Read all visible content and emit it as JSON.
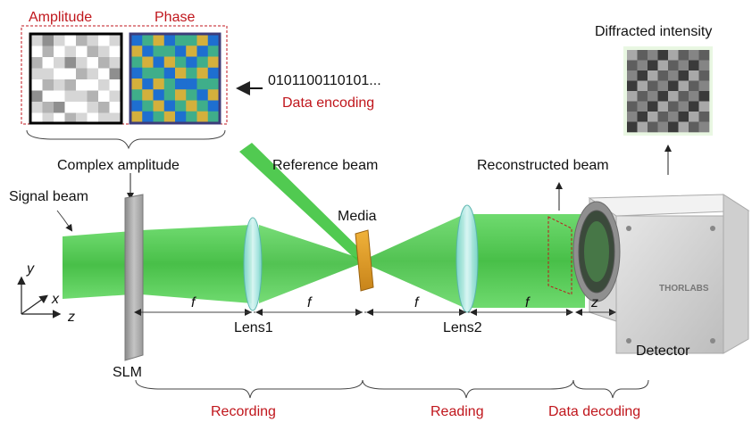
{
  "labels": {
    "amplitude": "Amplitude",
    "phase": "Phase",
    "bitstream": "0101100110101...",
    "data_encoding": "Data encoding",
    "complex_amplitude": "Complex amplitude",
    "reference_beam": "Reference beam",
    "signal_beam": "Signal beam",
    "media": "Media",
    "reconstructed_beam": "Reconstructed beam",
    "diffracted_intensity": "Diffracted intensity",
    "lens1": "Lens1",
    "lens2": "Lens2",
    "slm": "SLM",
    "detector": "Detector",
    "detector_brand": "THORLABS",
    "f": "f",
    "z": "z",
    "axis_x": "x",
    "axis_y": "y",
    "axis_z": "z",
    "recording": "Recording",
    "reading": "Reading",
    "data_decoding": "Data decoding"
  },
  "colors": {
    "accent_red": "#c0161c",
    "beam_green": "#3ec43e",
    "phase_blue": "#1e6fd0",
    "phase_teal": "#3fae8a",
    "phase_yellow": "#d4b03c"
  },
  "patterns": {
    "amplitude": [
      [
        1,
        3,
        1,
        0,
        2,
        1,
        0,
        1
      ],
      [
        0,
        2,
        0,
        1,
        0,
        2,
        1,
        0
      ],
      [
        2,
        0,
        1,
        3,
        1,
        0,
        2,
        1
      ],
      [
        1,
        1,
        0,
        0,
        2,
        1,
        0,
        3
      ],
      [
        0,
        2,
        1,
        2,
        0,
        0,
        1,
        0
      ],
      [
        3,
        0,
        0,
        1,
        1,
        2,
        0,
        1
      ],
      [
        1,
        2,
        3,
        0,
        0,
        1,
        2,
        0
      ],
      [
        0,
        1,
        0,
        2,
        1,
        0,
        1,
        1
      ]
    ],
    "phase": [
      [
        0,
        1,
        2,
        0,
        1,
        1,
        2,
        0
      ],
      [
        2,
        0,
        1,
        1,
        0,
        2,
        0,
        1
      ],
      [
        1,
        2,
        0,
        2,
        1,
        0,
        1,
        2
      ],
      [
        0,
        1,
        1,
        0,
        2,
        1,
        2,
        0
      ],
      [
        2,
        0,
        2,
        1,
        0,
        0,
        1,
        1
      ],
      [
        1,
        2,
        0,
        1,
        2,
        1,
        0,
        2
      ],
      [
        0,
        1,
        2,
        0,
        1,
        2,
        1,
        0
      ],
      [
        2,
        0,
        1,
        2,
        0,
        1,
        2,
        1
      ]
    ],
    "intensity": [
      [
        3,
        1,
        2,
        0,
        3,
        1,
        2,
        1
      ],
      [
        1,
        2,
        0,
        3,
        1,
        2,
        0,
        2
      ],
      [
        2,
        0,
        3,
        1,
        2,
        0,
        3,
        1
      ],
      [
        0,
        3,
        1,
        2,
        0,
        3,
        1,
        2
      ],
      [
        3,
        1,
        2,
        0,
        3,
        1,
        2,
        0
      ],
      [
        1,
        2,
        0,
        3,
        1,
        2,
        0,
        3
      ],
      [
        2,
        0,
        3,
        1,
        2,
        0,
        3,
        1
      ],
      [
        0,
        3,
        1,
        2,
        0,
        3,
        1,
        2
      ]
    ]
  }
}
